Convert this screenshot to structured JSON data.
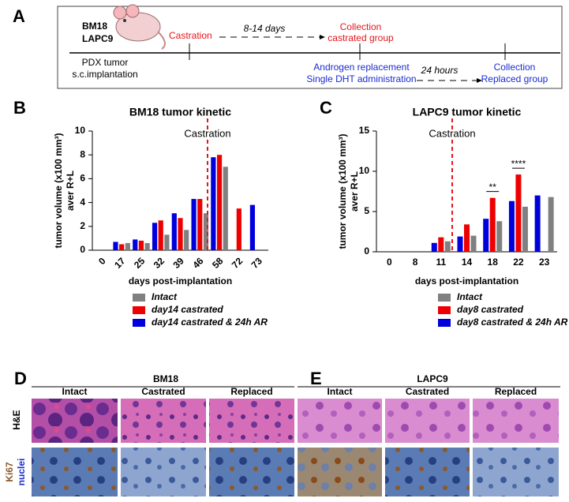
{
  "panel_a": {
    "label": "A",
    "models": [
      "BM18",
      "LAPC9"
    ],
    "castration": "Castration",
    "interval_1": "8-14 days",
    "collection_1": [
      "Collection",
      "castrated group"
    ],
    "implantation": [
      "PDX tumor",
      "s.c.implantation"
    ],
    "replacement": [
      "Androgen replacement",
      "Single DHT administration"
    ],
    "interval_2": "24 hours",
    "collection_2": [
      "Collection",
      "Replaced group"
    ]
  },
  "chart_data": [
    {
      "panel_label": "B",
      "type": "bar",
      "title": "BM18 tumor kinetic",
      "x_label": "days post-implantation",
      "y_label": [
        "tumor volume (x100 mm³)",
        "aver R+L"
      ],
      "annotation": "Castration",
      "categories": [
        "0",
        "17",
        "25",
        "32",
        "39",
        "46",
        "58",
        "72",
        "73"
      ],
      "series": [
        {
          "name": "Intact",
          "color": "#808080",
          "values": [
            null,
            0.6,
            0.6,
            1.3,
            1.7,
            3.1,
            7.0,
            null,
            null
          ]
        },
        {
          "name": "day14 castrated",
          "color": "#ee0000",
          "values": [
            null,
            0.5,
            0.8,
            2.5,
            2.7,
            4.3,
            8.0,
            3.5,
            null
          ]
        },
        {
          "name": "day14 castrated & 24h AR",
          "color": "#0000dd",
          "values": [
            null,
            0.7,
            0.9,
            2.3,
            3.1,
            4.3,
            7.8,
            null,
            3.8
          ]
        }
      ],
      "ylim": [
        0,
        10
      ],
      "yticks": [
        0,
        2,
        4,
        6,
        8,
        10
      ]
    },
    {
      "panel_label": "C",
      "type": "bar",
      "title": "LAPC9 tumor kinetic",
      "x_label": "days post-implantation",
      "y_label": [
        "tumor volume (x100 mm³)",
        "aver R+L"
      ],
      "annotation": "Castration",
      "categories": [
        "0",
        "8",
        "11",
        "14",
        "18",
        "22",
        "23"
      ],
      "significance": [
        null,
        null,
        null,
        null,
        "**",
        "****",
        null
      ],
      "series": [
        {
          "name": "Intact",
          "color": "#808080",
          "values": [
            null,
            null,
            1.3,
            2.0,
            3.8,
            5.6,
            6.8
          ]
        },
        {
          "name": "day8 castrated",
          "color": "#ee0000",
          "values": [
            null,
            null,
            1.8,
            3.4,
            6.7,
            9.6,
            null
          ]
        },
        {
          "name": "day8 castrated & 24h AR",
          "color": "#0000dd",
          "values": [
            null,
            null,
            1.1,
            1.9,
            4.1,
            6.3,
            7.0
          ]
        }
      ],
      "ylim": [
        0,
        15
      ],
      "yticks": [
        0,
        5,
        10,
        15
      ]
    }
  ],
  "histology": {
    "panels": [
      {
        "label": "D",
        "model": "BM18",
        "columns": [
          "Intact",
          "Castrated",
          "Replaced"
        ]
      },
      {
        "label": "E",
        "model": "LAPC9",
        "columns": [
          "Intact",
          "Castrated",
          "Replaced"
        ]
      }
    ],
    "stain_he": "H&E",
    "stain_ki67": "Ki67",
    "stain_nuclei": "nuclei"
  }
}
